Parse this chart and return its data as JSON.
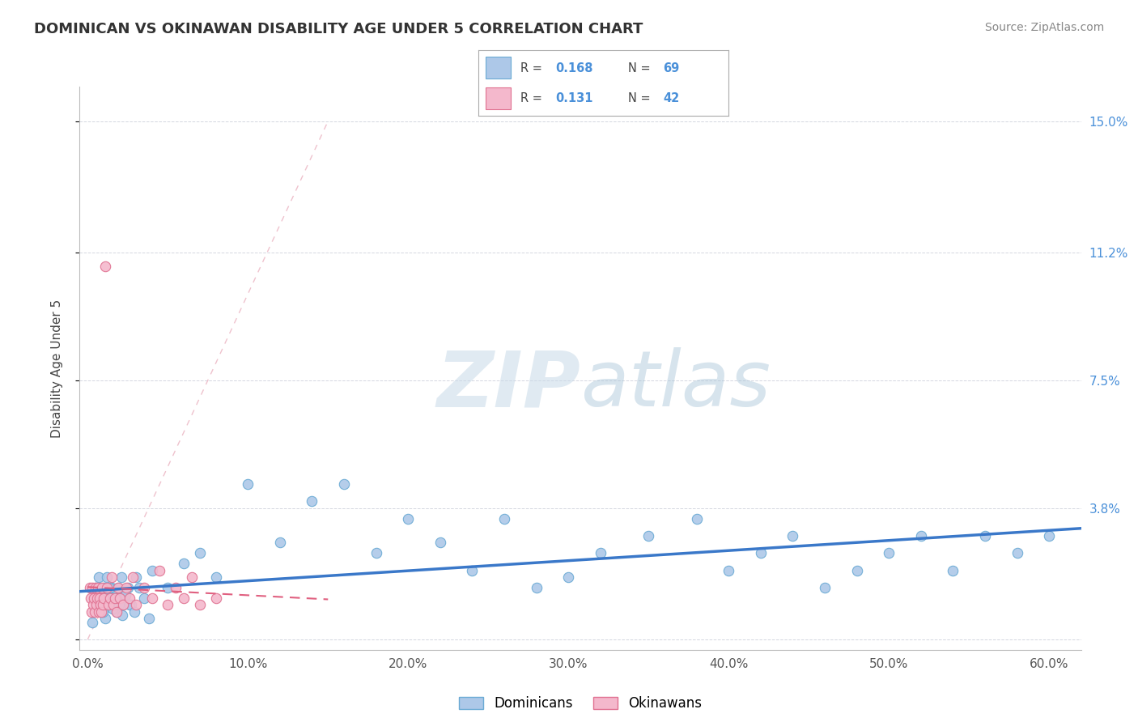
{
  "title": "DOMINICAN VS OKINAWAN DISABILITY AGE UNDER 5 CORRELATION CHART",
  "source": "Source: ZipAtlas.com",
  "xlabel_vals": [
    0.0,
    10.0,
    20.0,
    30.0,
    40.0,
    50.0,
    60.0
  ],
  "ylabel": "Disability Age Under 5",
  "ytick_vals": [
    0.0,
    3.8,
    7.5,
    11.2,
    15.0
  ],
  "ytick_labels": [
    "",
    "3.8%",
    "7.5%",
    "11.2%",
    "15.0%"
  ],
  "xlim": [
    -0.5,
    62.0
  ],
  "ylim": [
    -0.3,
    16.0
  ],
  "color_dominican_fill": "#adc8e8",
  "color_dominican_edge": "#6aaad4",
  "color_okinawan_fill": "#f4b8cc",
  "color_okinawan_edge": "#e07090",
  "color_trend_dominican": "#3a78c9",
  "color_trend_okinawan": "#e06080",
  "color_diag": "#e8a8b8",
  "color_grid": "#c8ccd8",
  "watermark_zip": "ZIP",
  "watermark_atlas": "atlas",
  "watermark_color_zip": "#c8d8e8",
  "watermark_color_atlas": "#a8c0d8",
  "legend_r1": "0.168",
  "legend_n1": "69",
  "legend_r2": "0.131",
  "legend_n2": "42",
  "dominican_x": [
    0.4,
    0.5,
    0.6,
    0.7,
    0.8,
    0.9,
    1.0,
    1.1,
    1.2,
    1.3,
    1.4,
    1.5,
    1.6,
    1.7,
    1.8,
    1.9,
    2.0,
    2.1,
    2.2,
    2.3,
    2.5,
    2.7,
    3.0,
    3.5,
    4.0,
    5.0,
    6.0,
    7.0,
    8.0,
    10.0,
    12.0,
    14.0,
    16.0,
    18.0,
    20.0,
    22.0,
    24.0,
    26.0,
    28.0,
    30.0,
    32.0,
    35.0,
    38.0,
    40.0,
    42.0,
    44.0,
    46.0,
    48.0,
    50.0,
    52.0,
    54.0,
    56.0,
    58.0,
    60.0,
    0.3,
    0.55,
    0.75,
    0.95,
    1.15,
    1.35,
    1.55,
    1.75,
    1.95,
    2.15,
    2.35,
    2.6,
    2.9,
    3.2,
    3.8
  ],
  "dominican_y": [
    1.2,
    1.5,
    1.0,
    1.8,
    1.2,
    0.8,
    1.5,
    0.6,
    1.8,
    1.0,
    1.2,
    1.5,
    0.9,
    1.2,
    0.8,
    1.5,
    1.2,
    1.8,
    1.0,
    1.3,
    1.5,
    1.0,
    1.8,
    1.2,
    2.0,
    1.5,
    2.2,
    2.5,
    1.8,
    4.5,
    2.8,
    4.0,
    4.5,
    2.5,
    3.5,
    2.8,
    2.0,
    3.5,
    1.5,
    1.8,
    2.5,
    3.0,
    3.5,
    2.0,
    2.5,
    3.0,
    1.5,
    2.0,
    2.5,
    3.0,
    2.0,
    3.0,
    2.5,
    3.0,
    0.5,
    1.0,
    1.5,
    0.8,
    1.2,
    1.5,
    0.9,
    1.2,
    1.0,
    0.7,
    1.3,
    1.0,
    0.8,
    1.5,
    0.6
  ],
  "okinawan_x": [
    0.15,
    0.2,
    0.25,
    0.3,
    0.35,
    0.4,
    0.45,
    0.5,
    0.55,
    0.6,
    0.65,
    0.7,
    0.75,
    0.8,
    0.85,
    0.9,
    0.95,
    1.0,
    1.1,
    1.2,
    1.3,
    1.4,
    1.5,
    1.6,
    1.7,
    1.8,
    1.9,
    2.0,
    2.2,
    2.4,
    2.6,
    2.8,
    3.0,
    3.5,
    4.0,
    4.5,
    5.0,
    5.5,
    6.0,
    6.5,
    7.0,
    8.0
  ],
  "okinawan_y": [
    1.5,
    1.2,
    0.8,
    1.5,
    1.0,
    1.2,
    0.8,
    1.5,
    1.0,
    1.2,
    1.5,
    0.8,
    1.2,
    1.0,
    0.8,
    1.5,
    1.0,
    1.2,
    10.8,
    1.5,
    1.0,
    1.2,
    1.8,
    1.0,
    1.2,
    0.8,
    1.5,
    1.2,
    1.0,
    1.5,
    1.2,
    1.8,
    1.0,
    1.5,
    1.2,
    2.0,
    1.0,
    1.5,
    1.2,
    1.8,
    1.0,
    1.2
  ],
  "diag_x0": 0.0,
  "diag_y0": 0.0,
  "diag_x1": 15.0,
  "diag_y1": 15.0
}
